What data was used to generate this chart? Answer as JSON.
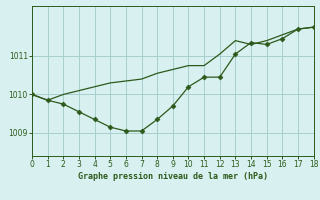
{
  "line1_x": [
    0,
    1,
    2,
    3,
    4,
    5,
    6,
    7,
    8,
    9,
    10,
    11,
    12,
    13,
    14,
    15,
    16,
    17,
    18
  ],
  "line1_y": [
    1010.0,
    1009.85,
    1010.0,
    1010.1,
    1010.2,
    1010.3,
    1010.35,
    1010.4,
    1010.55,
    1010.65,
    1010.75,
    1010.75,
    1011.05,
    1011.4,
    1011.3,
    1011.4,
    1011.55,
    1011.7,
    1011.75
  ],
  "line2_x": [
    0,
    1,
    2,
    3,
    4,
    5,
    6,
    7,
    8,
    9,
    10,
    11,
    12,
    13,
    14,
    15,
    16,
    17,
    18
  ],
  "line2_y": [
    1010.0,
    1009.85,
    1009.75,
    1009.55,
    1009.35,
    1009.15,
    1009.05,
    1009.05,
    1009.35,
    1009.7,
    1010.2,
    1010.45,
    1010.45,
    1011.05,
    1011.35,
    1011.3,
    1011.45,
    1011.7,
    1011.75
  ],
  "line_color": "#2d5a1b",
  "bg_color": "#d8f0f0",
  "grid_color": "#a8cece",
  "xlabel": "Graphe pression niveau de la mer (hPa)",
  "xlabel_color": "#2d5a1b",
  "tick_color": "#2d5a1b",
  "ylim": [
    1008.4,
    1012.3
  ],
  "xlim": [
    0,
    18
  ],
  "yticks": [
    1009,
    1010,
    1011
  ],
  "xticks": [
    0,
    1,
    2,
    3,
    4,
    5,
    6,
    7,
    8,
    9,
    10,
    11,
    12,
    13,
    14,
    15,
    16,
    17,
    18
  ]
}
